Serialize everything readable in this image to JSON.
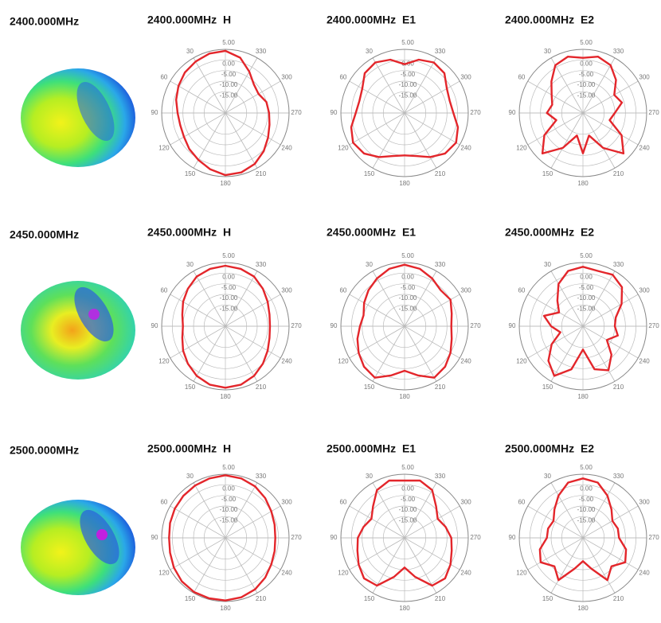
{
  "pattern_labels": [
    "2400.000MHz",
    "2450.000MHz",
    "2500.000MHz"
  ],
  "chart_data": [
    {
      "type": "polar",
      "title": "2400.000MHz  H",
      "color": "#e3262b",
      "rlim": [
        -25,
        5
      ],
      "rticks": [
        {
          "value": 5,
          "label": "5.00"
        },
        {
          "value": 0,
          "label": "0.00"
        },
        {
          "value": -5,
          "label": "-5.00"
        },
        {
          "value": -10,
          "label": "-10.00"
        },
        {
          "value": -15,
          "label": "-15.00"
        }
      ],
      "thetaticks": [
        30,
        60,
        90,
        120,
        150,
        180,
        210,
        240,
        270,
        300,
        330
      ],
      "theta": [
        0,
        15,
        30,
        45,
        60,
        75,
        90,
        105,
        120,
        135,
        150,
        165,
        180,
        195,
        210,
        225,
        240,
        255,
        270,
        285,
        300,
        315,
        330,
        345
      ],
      "values": [
        4.3,
        4,
        3,
        2,
        0.5,
        -1,
        -2.5,
        -3,
        -2.5,
        -1,
        0.5,
        2.5,
        4.3,
        4,
        2.7,
        0.5,
        -1.8,
        -3.5,
        -4.4,
        -5,
        -7,
        -6,
        -2.5,
        2
      ]
    },
    {
      "type": "polar",
      "title": "2400.000MHz  E1",
      "color": "#e3262b",
      "rlim": [
        -25,
        5
      ],
      "rticks": [
        {
          "value": 5,
          "label": "5.00"
        },
        {
          "value": 0,
          "label": "0.00"
        },
        {
          "value": -5,
          "label": "-5.00"
        },
        {
          "value": -10,
          "label": "-10.00"
        },
        {
          "value": -15,
          "label": "-15.00"
        }
      ],
      "thetaticks": [
        30,
        60,
        90,
        120,
        150,
        180,
        210,
        240,
        270,
        300,
        330
      ],
      "theta": [
        0,
        15,
        30,
        45,
        60,
        75,
        90,
        105,
        120,
        135,
        150,
        165,
        180,
        195,
        210,
        225,
        240,
        255,
        270,
        285,
        300,
        315,
        330,
        345
      ],
      "values": [
        -2,
        1,
        2.5,
        1.5,
        -2,
        -3,
        -2,
        1,
        3,
        2,
        -1,
        -4,
        -5,
        -4,
        -1,
        2,
        3,
        1,
        -2,
        -3,
        -2,
        1.5,
        2.5,
        1
      ]
    },
    {
      "type": "polar",
      "title": "2400.000MHz  E2",
      "color": "#e3262b",
      "rlim": [
        -25,
        5
      ],
      "rticks": [
        {
          "value": 5,
          "label": "5.00"
        },
        {
          "value": 0,
          "label": "0.00"
        },
        {
          "value": -5,
          "label": "-5.00"
        },
        {
          "value": -10,
          "label": "-10.00"
        },
        {
          "value": -15,
          "label": "-15.00"
        }
      ],
      "thetaticks": [
        30,
        60,
        90,
        120,
        150,
        180,
        210,
        240,
        270,
        300,
        330
      ],
      "theta": [
        0,
        15,
        30,
        45,
        60,
        75,
        90,
        105,
        120,
        135,
        150,
        165,
        180,
        195,
        210,
        225,
        240,
        255,
        270,
        285,
        300,
        315,
        330,
        345
      ],
      "values": [
        1,
        2.5,
        1,
        -4,
        -8,
        -10,
        -8,
        -12,
        -4,
        2,
        -6,
        -14,
        -6,
        -14,
        -6,
        2,
        -4,
        -12,
        -10,
        -6,
        -8,
        -3,
        1,
        2.5
      ]
    },
    {
      "type": "polar",
      "title": "2450.000MHz  H",
      "color": "#e3262b",
      "rlim": [
        -25,
        5
      ],
      "rticks": [
        {
          "value": 5,
          "label": "5.00"
        },
        {
          "value": 0,
          "label": "0.00"
        },
        {
          "value": -5,
          "label": "-5.00"
        },
        {
          "value": -10,
          "label": "-10.00"
        },
        {
          "value": -15,
          "label": "-15.00"
        }
      ],
      "thetaticks": [
        30,
        60,
        90,
        120,
        150,
        180,
        210,
        240,
        270,
        300,
        330
      ],
      "theta": [
        0,
        15,
        30,
        45,
        60,
        75,
        90,
        105,
        120,
        135,
        150,
        165,
        180,
        195,
        210,
        225,
        240,
        255,
        270,
        285,
        300,
        315,
        330,
        345
      ],
      "values": [
        3.5,
        3,
        2,
        0,
        -2,
        -4,
        -5,
        -4,
        -2,
        0,
        2,
        3.5,
        4,
        3.5,
        2,
        0,
        -2,
        -3.5,
        -4,
        -3.5,
        -2,
        0,
        2,
        3
      ]
    },
    {
      "type": "polar",
      "title": "2450.000MHz  E1",
      "color": "#e3262b",
      "rlim": [
        -25,
        5
      ],
      "rticks": [
        {
          "value": 5,
          "label": "5.00"
        },
        {
          "value": 0,
          "label": "0.00"
        },
        {
          "value": -5,
          "label": "-5.00"
        },
        {
          "value": -10,
          "label": "-10.00"
        },
        {
          "value": -15,
          "label": "-15.00"
        }
      ],
      "thetaticks": [
        30,
        60,
        90,
        120,
        150,
        180,
        210,
        240,
        270,
        300,
        330
      ],
      "theta": [
        0,
        15,
        30,
        45,
        60,
        75,
        90,
        105,
        120,
        135,
        150,
        165,
        180,
        195,
        210,
        225,
        240,
        255,
        270,
        285,
        300,
        315,
        330,
        345
      ],
      "values": [
        4,
        3,
        1,
        -1,
        -3,
        -5,
        -4,
        -2,
        0,
        2,
        3,
        -1,
        -4,
        -1,
        3,
        2,
        0,
        -2,
        -3,
        -2,
        0,
        -1,
        1,
        3
      ]
    },
    {
      "type": "polar",
      "title": "2450.000MHz  E2",
      "color": "#e3262b",
      "rlim": [
        -25,
        5
      ],
      "rticks": [
        {
          "value": 5,
          "label": "5.00"
        },
        {
          "value": 0,
          "label": "0.00"
        },
        {
          "value": -5,
          "label": "-5.00"
        },
        {
          "value": -10,
          "label": "-10.00"
        },
        {
          "value": -15,
          "label": "-15.00"
        }
      ],
      "thetaticks": [
        30,
        60,
        90,
        120,
        150,
        180,
        210,
        240,
        270,
        300,
        330
      ],
      "theta": [
        0,
        15,
        30,
        45,
        60,
        75,
        90,
        105,
        120,
        135,
        150,
        165,
        180,
        195,
        210,
        225,
        240,
        255,
        270,
        285,
        300,
        315,
        330,
        345
      ],
      "values": [
        3,
        2,
        -2,
        -8,
        -12,
        -6,
        -10,
        -14,
        -8,
        -2,
        2,
        -4,
        -14,
        -4,
        -1,
        -6,
        -12,
        -8,
        -10,
        -9,
        -4,
        1,
        3,
        2
      ]
    },
    {
      "type": "polar",
      "title": "2500.000MHz  H",
      "color": "#e3262b",
      "rlim": [
        -25,
        5
      ],
      "rticks": [
        {
          "value": 5,
          "label": "5.00"
        },
        {
          "value": 0,
          "label": "0.00"
        },
        {
          "value": -5,
          "label": "-5.00"
        },
        {
          "value": -10,
          "label": "-10.00"
        },
        {
          "value": -15,
          "label": "-15.00"
        }
      ],
      "thetaticks": [
        30,
        60,
        90,
        120,
        150,
        180,
        210,
        240,
        270,
        300,
        330
      ],
      "theta": [
        0,
        15,
        30,
        45,
        60,
        75,
        90,
        105,
        120,
        135,
        150,
        165,
        180,
        195,
        210,
        225,
        240,
        255,
        270,
        285,
        300,
        315,
        330,
        345
      ],
      "values": [
        4.5,
        4,
        3.5,
        3,
        2.5,
        2,
        1.5,
        2,
        3,
        4,
        4.5,
        4.5,
        4.5,
        4,
        3,
        1.5,
        0,
        -1,
        -1.5,
        -1,
        0,
        1.5,
        3,
        4
      ]
    },
    {
      "type": "polar",
      "title": "2500.000MHz  E1",
      "color": "#e3262b",
      "rlim": [
        -25,
        5
      ],
      "rticks": [
        {
          "value": 5,
          "label": "5.00"
        },
        {
          "value": 0,
          "label": "0.00"
        },
        {
          "value": -5,
          "label": "-5.00"
        },
        {
          "value": -10,
          "label": "-10.00"
        },
        {
          "value": -15,
          "label": "-15.00"
        }
      ],
      "thetaticks": [
        30,
        60,
        90,
        120,
        150,
        180,
        210,
        240,
        270,
        300,
        330
      ],
      "theta": [
        0,
        15,
        30,
        45,
        60,
        75,
        90,
        105,
        120,
        135,
        150,
        165,
        180,
        195,
        210,
        225,
        240,
        255,
        270,
        285,
        300,
        315,
        330,
        345
      ],
      "values": [
        2,
        3,
        1,
        -4,
        -7,
        -5,
        -3,
        -2,
        0,
        2,
        1,
        -6,
        -11,
        -6,
        1,
        2,
        0,
        -2,
        -3,
        -5,
        -7,
        -4,
        1,
        3
      ]
    },
    {
      "type": "polar",
      "title": "2500.000MHz  E2",
      "color": "#e3262b",
      "rlim": [
        -25,
        5
      ],
      "rticks": [
        {
          "value": 5,
          "label": "5.00"
        },
        {
          "value": 0,
          "label": "0.00"
        },
        {
          "value": -5,
          "label": "-5.00"
        },
        {
          "value": -10,
          "label": "-10.00"
        },
        {
          "value": -15,
          "label": "-15.00"
        }
      ],
      "thetaticks": [
        30,
        60,
        90,
        120,
        150,
        180,
        210,
        240,
        270,
        300,
        330
      ],
      "theta": [
        0,
        15,
        30,
        45,
        60,
        75,
        90,
        105,
        120,
        135,
        150,
        165,
        180,
        195,
        210,
        225,
        240,
        255,
        270,
        285,
        300,
        315,
        330,
        345
      ],
      "values": [
        3,
        2,
        -2,
        -6,
        -9,
        -8,
        -8,
        -4,
        -2,
        -6,
        -2,
        -10,
        -14,
        -10,
        -2,
        -6,
        -2,
        -4,
        -8,
        -8,
        -9,
        -6,
        -2,
        2
      ]
    }
  ]
}
